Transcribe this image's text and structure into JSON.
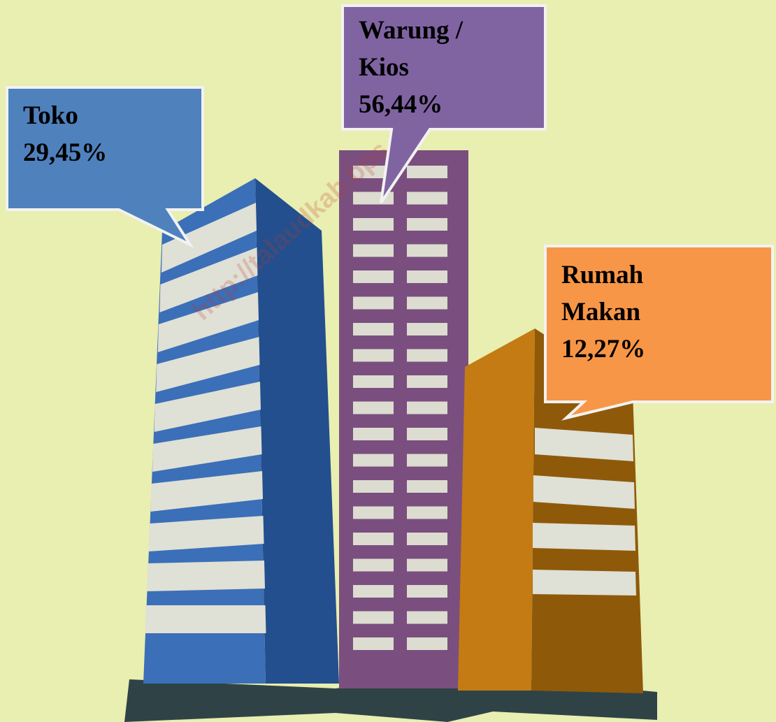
{
  "callouts": [
    {
      "lines": [
        "Toko"
      ],
      "value": "29,45%"
    },
    {
      "lines": [
        "Warung /",
        "Kios"
      ],
      "value": "56,44%"
    },
    {
      "lines": [
        "Rumah",
        "Makan"
      ],
      "value": "12,27%"
    }
  ],
  "watermark": "http://talaudkab.bps.go.id"
}
